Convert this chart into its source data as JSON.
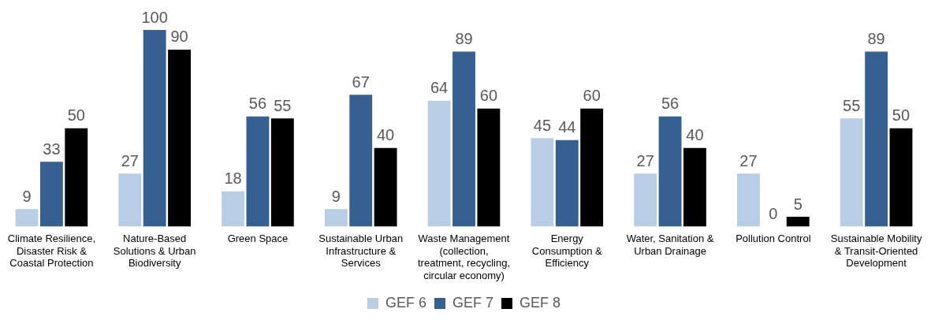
{
  "chart_data": {
    "type": "bar",
    "categories": [
      "Climate Resilience, Disaster Risk & Coastal Protection",
      "Nature-Based Solutions & Urban Biodiversity",
      "Green Space",
      "Sustainable Urban Infrastructure & Services",
      "Waste Management (collection, treatment, recycling, circular economy)",
      "Energy Consumption & Efficiency",
      "Water, Sanitation & Urban Drainage",
      "Pollution Control",
      "Sustainable Mobility & Transit-Oriented Development"
    ],
    "series": [
      {
        "name": "GEF 6",
        "color": "#b9cde5",
        "values": [
          9,
          27,
          18,
          9,
          64,
          45,
          27,
          27,
          55
        ]
      },
      {
        "name": "GEF 7",
        "color": "#376092",
        "values": [
          33,
          100,
          56,
          67,
          89,
          44,
          56,
          0,
          89
        ]
      },
      {
        "name": "GEF 8",
        "color": "#000000",
        "values": [
          50,
          90,
          55,
          40,
          60,
          60,
          40,
          5,
          50
        ]
      }
    ],
    "data_labels": true,
    "legend": "bottom",
    "grid": false
  }
}
